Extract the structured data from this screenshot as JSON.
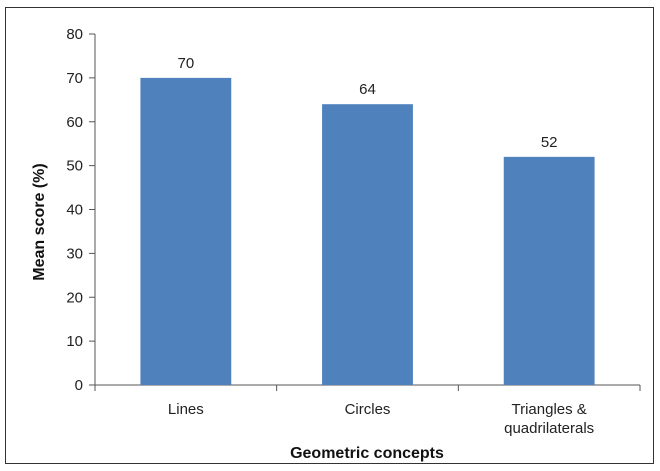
{
  "chart_data": {
    "type": "bar",
    "categories": [
      "Lines",
      "Circles",
      "Triangles & quadrilaterals"
    ],
    "category_lines": [
      [
        "Lines"
      ],
      [
        "Circles"
      ],
      [
        "Triangles &",
        "quadrilaterals"
      ]
    ],
    "values": [
      70,
      64,
      52
    ],
    "data_labels": [
      "70",
      "64",
      "52"
    ],
    "xlabel": "Geometric concepts",
    "ylabel": "Mean score (%)",
    "ylim": [
      0,
      80
    ],
    "yticks": [
      0,
      10,
      20,
      30,
      40,
      50,
      60,
      70,
      80
    ],
    "grid": false,
    "legend": "none",
    "bar_color": "#4f81bd"
  }
}
